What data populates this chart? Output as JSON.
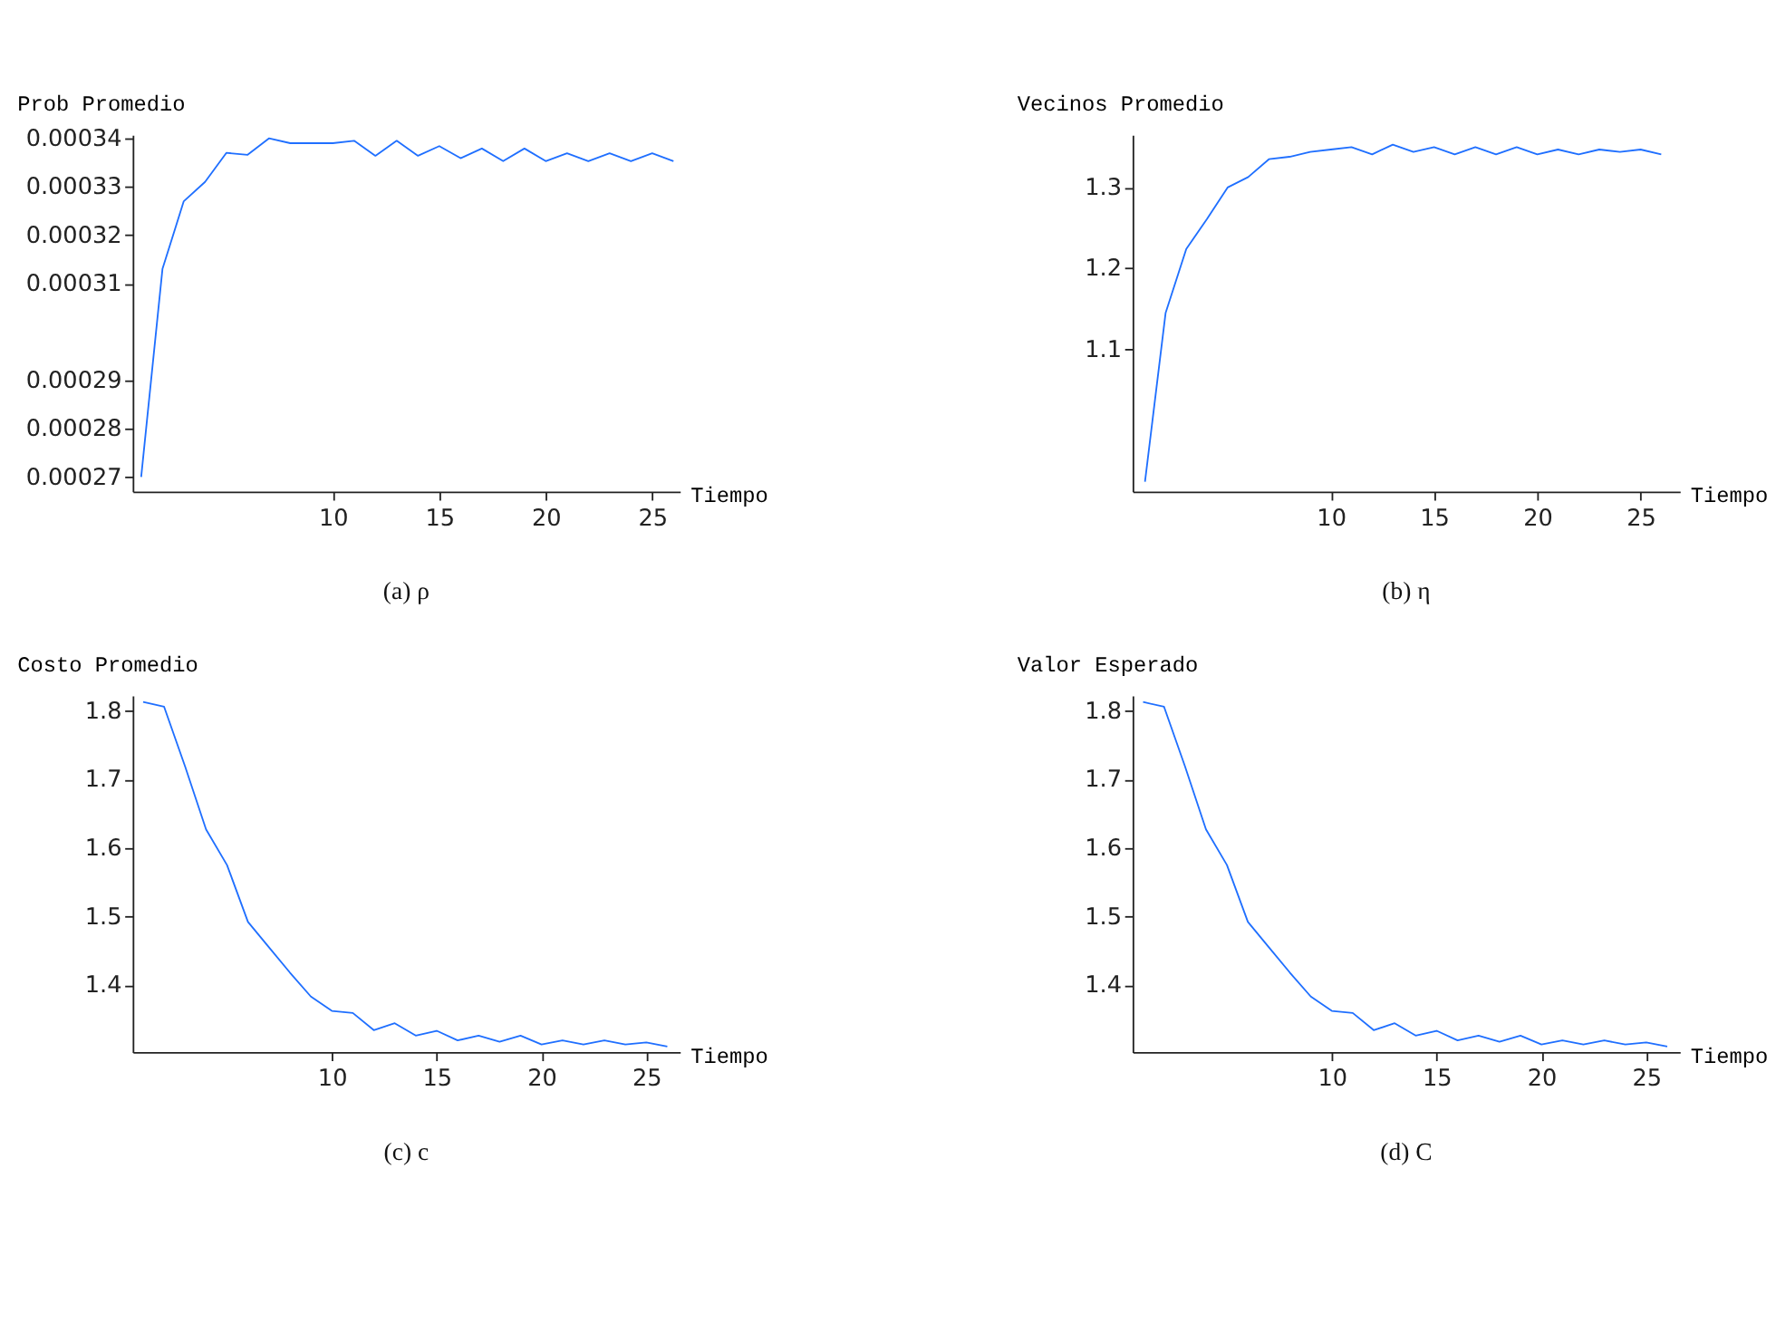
{
  "chart_data": [
    {
      "type": "line",
      "title": "(a) ρ",
      "xlabel": "Tiempo",
      "ylabel": "Prob  Promedio",
      "grid": false,
      "marker": "none",
      "line_style": "solid",
      "x": [
        1,
        2,
        3,
        4,
        5,
        6,
        7,
        8,
        9,
        10,
        11,
        12,
        13,
        14,
        15,
        16,
        17,
        18,
        19,
        20,
        21,
        22,
        23,
        24,
        25,
        26
      ],
      "series": [
        {
          "color": "#1f6fff",
          "values": [
            0.00027,
            0.000313,
            0.000327,
            0.000331,
            0.000337,
            0.0003366,
            0.00034,
            0.000339,
            0.000339,
            0.000339,
            0.0003395,
            0.0003364,
            0.0003395,
            0.0003364,
            0.0003384,
            0.0003359,
            0.0003379,
            0.0003353,
            0.0003379,
            0.0003353,
            0.0003369,
            0.0003353,
            0.0003369,
            0.0003353,
            0.0003369,
            0.0003353
          ]
        }
      ],
      "xlim": [
        0.6,
        26.3
      ],
      "xticks": [
        10,
        15,
        20,
        25
      ],
      "ylim": [
        0.000267,
        0.0003407
      ],
      "yticks": [
        0.00027,
        0.00028,
        0.00029,
        0.00031,
        0.00032,
        0.00033,
        0.00034
      ]
    },
    {
      "type": "line",
      "title": "(b) η",
      "xlabel": "Tiempo",
      "ylabel": "Vecinos  Promedio",
      "grid": false,
      "marker": "none",
      "line_style": "solid",
      "x": [
        1,
        2,
        3,
        4,
        5,
        6,
        7,
        8,
        9,
        10,
        11,
        12,
        13,
        14,
        15,
        16,
        17,
        18,
        19,
        20,
        21,
        22,
        23,
        24,
        25,
        26
      ],
      "series": [
        {
          "color": "#1f6fff",
          "values": [
            0.936,
            1.145,
            1.224,
            1.261,
            1.3,
            1.313,
            1.335,
            1.338,
            1.344,
            1.347,
            1.35,
            1.341,
            1.353,
            1.344,
            1.35,
            1.341,
            1.35,
            1.341,
            1.35,
            1.341,
            1.347,
            1.341,
            1.347,
            1.344,
            1.347,
            1.341
          ]
        }
      ],
      "xlim": [
        0.4,
        26.9
      ],
      "xticks": [
        10,
        15,
        20,
        25
      ],
      "ylim": [
        0.924,
        1.365
      ],
      "yticks": [
        1.1,
        1.2,
        1.3
      ]
    },
    {
      "type": "line",
      "title": "(c) c",
      "xlabel": "Tiempo",
      "ylabel": "Costo  Promedio",
      "grid": false,
      "marker": "none",
      "line_style": "solid",
      "x": [
        1,
        2,
        3,
        4,
        5,
        6,
        7,
        8,
        9,
        10,
        11,
        12,
        13,
        14,
        15,
        16,
        17,
        18,
        19,
        20,
        21,
        22,
        23,
        24,
        25,
        26
      ],
      "series": [
        {
          "color": "#1f6fff",
          "values": [
            1.813,
            1.806,
            1.719,
            1.627,
            1.575,
            1.492,
            1.455,
            1.418,
            1.383,
            1.362,
            1.359,
            1.334,
            1.344,
            1.326,
            1.333,
            1.319,
            1.326,
            1.317,
            1.326,
            1.313,
            1.319,
            1.313,
            1.319,
            1.313,
            1.316,
            1.31
          ]
        }
      ],
      "xlim": [
        0.5,
        26.6
      ],
      "xticks": [
        10,
        15,
        20,
        25
      ],
      "ylim": [
        1.302,
        1.8225
      ],
      "yticks": [
        1.4,
        1.5,
        1.6,
        1.7,
        1.8
      ]
    },
    {
      "type": "line",
      "title": "(d) C",
      "xlabel": "Tiempo",
      "ylabel": "Valor  Esperado",
      "grid": false,
      "marker": "none",
      "line_style": "solid",
      "x": [
        1,
        2,
        3,
        4,
        5,
        6,
        7,
        8,
        9,
        10,
        11,
        12,
        13,
        14,
        15,
        16,
        17,
        18,
        19,
        20,
        21,
        22,
        23,
        24,
        25,
        26
      ],
      "series": [
        {
          "color": "#1f6fff",
          "values": [
            1.813,
            1.806,
            1.719,
            1.627,
            1.575,
            1.492,
            1.455,
            1.418,
            1.383,
            1.362,
            1.359,
            1.334,
            1.344,
            1.326,
            1.333,
            1.319,
            1.326,
            1.317,
            1.326,
            1.313,
            1.319,
            1.313,
            1.319,
            1.313,
            1.316,
            1.31
          ]
        }
      ],
      "xlim": [
        0.5,
        26.6
      ],
      "xticks": [
        10,
        15,
        20,
        25
      ],
      "ylim": [
        1.302,
        1.8225
      ],
      "yticks": [
        1.4,
        1.5,
        1.6,
        1.7,
        1.8
      ]
    }
  ]
}
